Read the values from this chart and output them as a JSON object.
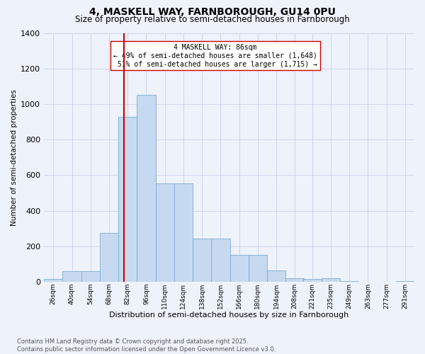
{
  "title1": "4, MASKELL WAY, FARNBOROUGH, GU14 0PU",
  "title2": "Size of property relative to semi-detached houses in Farnborough",
  "xlabel": "Distribution of semi-detached houses by size in Farnborough",
  "ylabel": "Number of semi-detached properties",
  "property_size": 86,
  "property_label": "4 MASKELL WAY: 86sqm",
  "pct_smaller": 49,
  "pct_larger": 51,
  "n_smaller": 1648,
  "n_larger": 1715,
  "bin_edges": [
    26,
    40,
    54,
    68,
    82,
    96,
    110,
    124,
    138,
    152,
    166,
    180,
    194,
    208,
    221,
    235,
    249,
    263,
    277,
    291,
    305
  ],
  "bar_heights": [
    15,
    60,
    60,
    275,
    930,
    1050,
    555,
    555,
    245,
    245,
    150,
    150,
    65,
    20,
    15,
    20,
    5,
    2,
    0,
    5
  ],
  "bar_color": "#c6d9f0",
  "bar_edge_color": "#7aadd4",
  "bg_color": "#eef2fb",
  "grid_color": "#c8d0e8",
  "line_color": "#cc0000",
  "ylim_max": 1400,
  "footnote1": "Contains HM Land Registry data © Crown copyright and database right 2025.",
  "footnote2": "Contains public sector information licensed under the Open Government Licence v3.0."
}
